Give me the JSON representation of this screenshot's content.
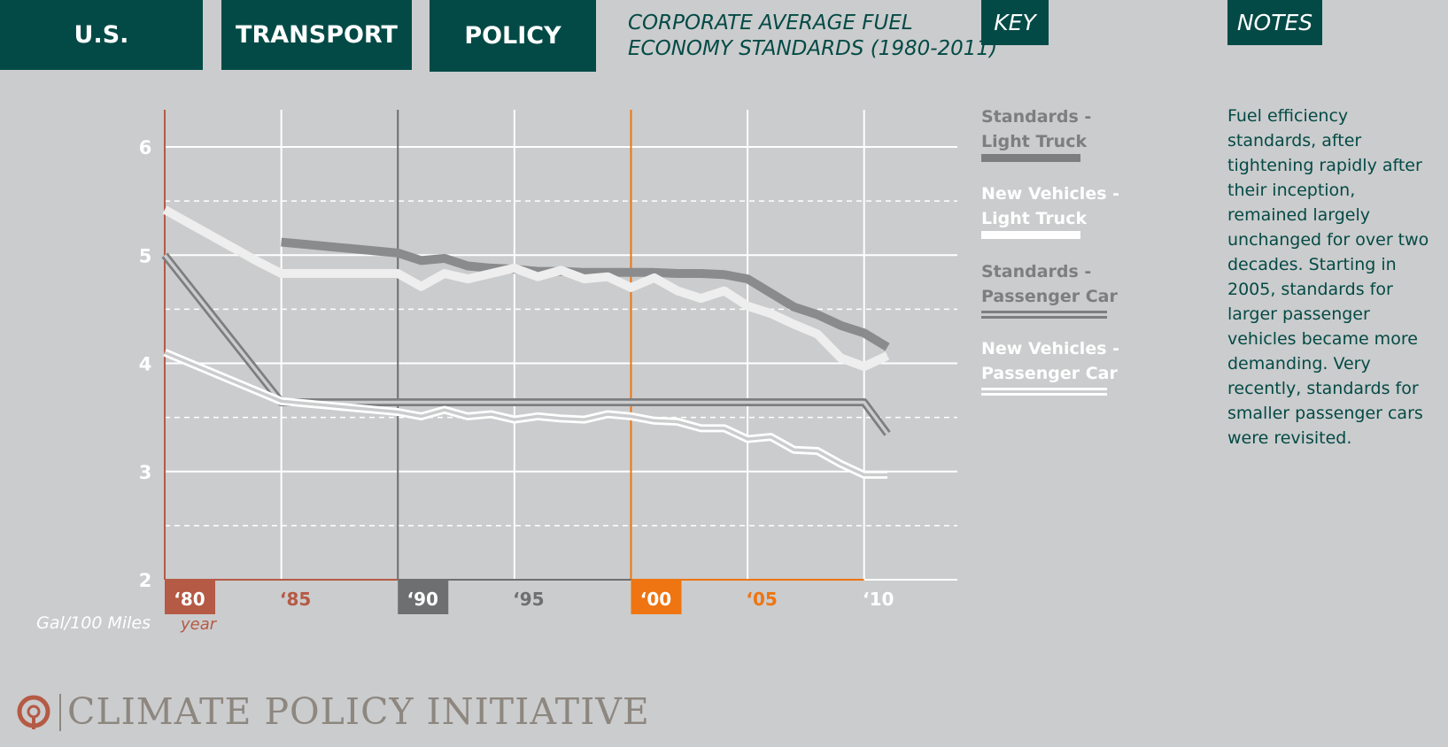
{
  "tabs": [
    "U.S.",
    "TRANSPORT",
    "POLICY"
  ],
  "title_line1": "CORPORATE AVERAGE FUEL",
  "title_line2": "ECONOMY STANDARDS (1980-2011)",
  "key_header": "KEY",
  "notes_header": "NOTES",
  "key": [
    {
      "line1": "Standards -",
      "line2": "Light Truck",
      "color": "#7d7e80"
    },
    {
      "line1": "New Vehicles -",
      "line2": "Light Truck",
      "color": "#ffffff"
    },
    {
      "line1": "Standards -",
      "line2": "Passenger Car",
      "color": "#7d7e80"
    },
    {
      "line1": "New Vehicles -",
      "line2": "Passenger Car",
      "color": "#ffffff"
    }
  ],
  "notes_text": "Fuel efficiency standards, after tightening rapidly after their inception, remained largely unchanged for over two decades. Starting in 2005, standards for larger passenger vehicles became more demanding. Very recently, standards for smaller passenger cars were revisited.",
  "unit_label": "Gal/100 Miles",
  "year_label": "year",
  "logo_text": "CLIMATE POLICY INITIATIVE",
  "chart_data": {
    "type": "line",
    "ylim": [
      2,
      6.3
    ],
    "xlim": [
      1980,
      2014
    ],
    "yticks": [
      2,
      3,
      4,
      5,
      6
    ],
    "yticks_dashed": [
      2.5,
      3.5,
      4.5,
      5.5
    ],
    "xticks": [
      {
        "year": 1980,
        "label": "‘80",
        "style": "box",
        "color": "#b55a45"
      },
      {
        "year": 1985,
        "label": "‘85",
        "style": "text",
        "color": "#b55a45"
      },
      {
        "year": 1990,
        "label": "‘90",
        "style": "box",
        "color": "#6e6f70"
      },
      {
        "year": 1995,
        "label": "‘95",
        "style": "text",
        "color": "#6e6f70"
      },
      {
        "year": 2000,
        "label": "‘00",
        "style": "box",
        "color": "#ee7511"
      },
      {
        "year": 2005,
        "label": "‘05",
        "style": "text",
        "color": "#ee7511"
      },
      {
        "year": 2010,
        "label": "‘10",
        "style": "text",
        "color": "#ffffff"
      }
    ],
    "eras": [
      {
        "start": 1980,
        "end": 1990,
        "color": "#b55a45"
      },
      {
        "start": 1990,
        "end": 2000,
        "color": "#6e6f70"
      },
      {
        "start": 2000,
        "end": 2010,
        "color": "#ee7511"
      }
    ],
    "series": [
      {
        "name": "Standards - Light Truck",
        "color": "#8a8b8d",
        "style": "thick",
        "x": [
          1985,
          1986,
          1987,
          1988,
          1989,
          1990,
          1991,
          1992,
          1993,
          1994,
          1995,
          1996,
          1997,
          1998,
          1999,
          2000,
          2001,
          2002,
          2003,
          2004,
          2005,
          2006,
          2007,
          2008,
          2009,
          2010,
          2011
        ],
        "y": [
          5.12,
          5.1,
          5.08,
          5.06,
          5.04,
          5.02,
          4.95,
          4.97,
          4.9,
          4.88,
          4.87,
          4.85,
          4.85,
          4.84,
          4.84,
          4.84,
          4.84,
          4.83,
          4.83,
          4.82,
          4.78,
          4.65,
          4.52,
          4.45,
          4.35,
          4.28,
          4.15
        ]
      },
      {
        "name": "New Vehicles - Light Truck",
        "color": "#eeeeee",
        "style": "thick",
        "x": [
          1980,
          1981,
          1982,
          1983,
          1984,
          1985,
          1986,
          1987,
          1988,
          1989,
          1990,
          1991,
          1992,
          1993,
          1994,
          1995,
          1996,
          1997,
          1998,
          1999,
          2000,
          2001,
          2002,
          2003,
          2004,
          2005,
          2006,
          2007,
          2008,
          2009,
          2010,
          2011
        ],
        "y": [
          5.42,
          5.3,
          5.18,
          5.06,
          4.94,
          4.83,
          4.83,
          4.83,
          4.83,
          4.83,
          4.83,
          4.71,
          4.83,
          4.78,
          4.83,
          4.88,
          4.8,
          4.86,
          4.78,
          4.8,
          4.7,
          4.79,
          4.67,
          4.6,
          4.67,
          4.53,
          4.46,
          4.36,
          4.27,
          4.05,
          3.97,
          4.07
        ]
      },
      {
        "name": "Standards - Passenger Car",
        "color": "#7d7e80",
        "style": "double",
        "x": [
          1980,
          1985,
          1986,
          1987,
          1988,
          1989,
          1990,
          1991,
          1992,
          1993,
          1994,
          1995,
          1996,
          1997,
          1998,
          1999,
          2000,
          2001,
          2002,
          2003,
          2004,
          2005,
          2006,
          2007,
          2008,
          2009,
          2010,
          2011
        ],
        "y": [
          5.0,
          3.64,
          3.64,
          3.64,
          3.64,
          3.64,
          3.64,
          3.64,
          3.64,
          3.64,
          3.64,
          3.64,
          3.64,
          3.64,
          3.64,
          3.64,
          3.64,
          3.64,
          3.64,
          3.64,
          3.64,
          3.64,
          3.64,
          3.64,
          3.64,
          3.64,
          3.64,
          3.35
        ]
      },
      {
        "name": "New Vehicles - Passenger Car",
        "color": "#ffffff",
        "style": "double",
        "x": [
          1980,
          1981,
          1982,
          1983,
          1984,
          1985,
          1986,
          1987,
          1988,
          1989,
          1990,
          1991,
          1992,
          1993,
          1994,
          1995,
          1996,
          1997,
          1998,
          1999,
          2000,
          2001,
          2002,
          2003,
          2004,
          2005,
          2006,
          2007,
          2008,
          2009,
          2010,
          2011
        ],
        "y": [
          4.1,
          4.01,
          3.92,
          3.83,
          3.74,
          3.65,
          3.63,
          3.61,
          3.59,
          3.57,
          3.55,
          3.51,
          3.57,
          3.51,
          3.53,
          3.48,
          3.51,
          3.49,
          3.48,
          3.53,
          3.51,
          3.47,
          3.46,
          3.4,
          3.4,
          3.3,
          3.32,
          3.2,
          3.19,
          3.07,
          2.97,
          2.97
        ]
      }
    ]
  }
}
